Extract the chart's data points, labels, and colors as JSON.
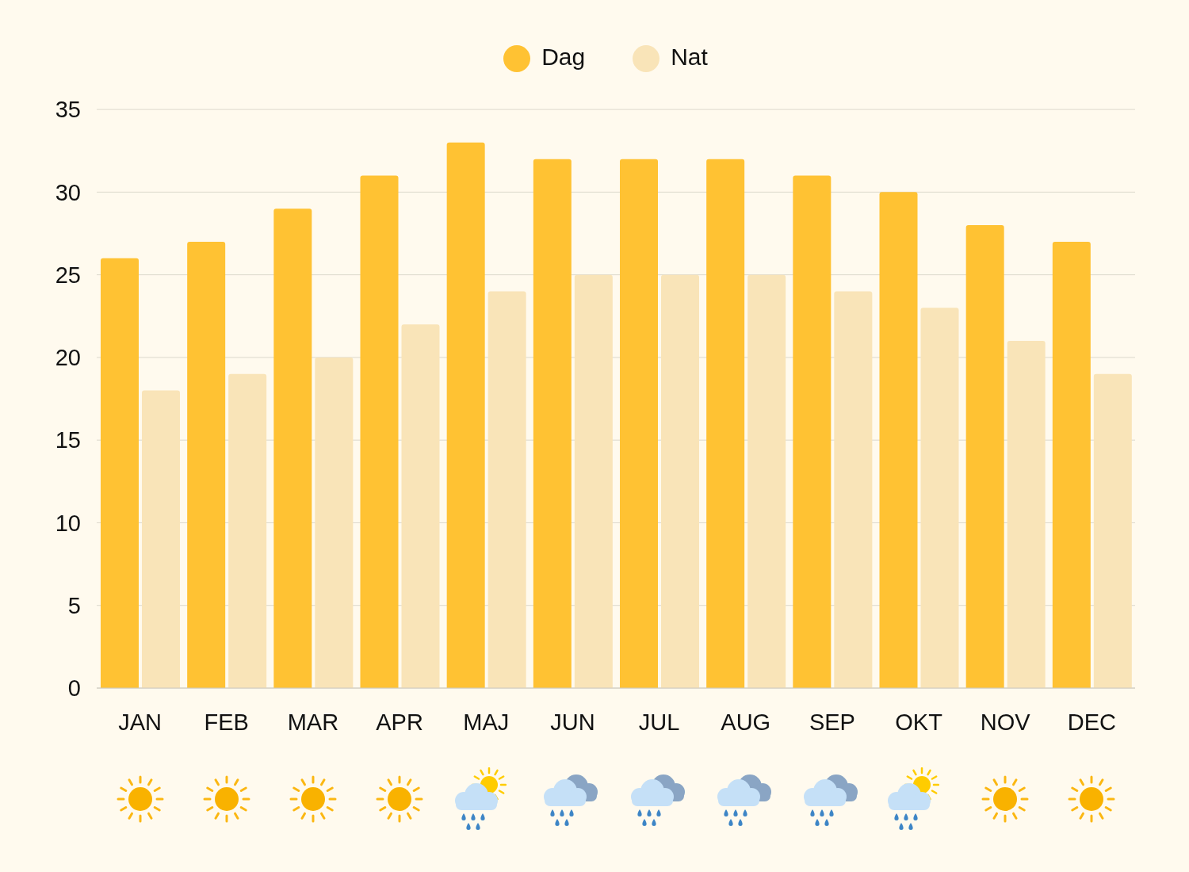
{
  "chart_data": {
    "type": "bar",
    "categories": [
      "JAN",
      "FEB",
      "MAR",
      "APR",
      "MAJ",
      "JUN",
      "JUL",
      "AUG",
      "SEP",
      "OKT",
      "NOV",
      "DEC"
    ],
    "series": [
      {
        "name": "Dag",
        "color": "#ffc233",
        "values": [
          26,
          27,
          29,
          31,
          33,
          32,
          32,
          32,
          31,
          30,
          28,
          27
        ]
      },
      {
        "name": "Nat",
        "color": "#f9e4b8",
        "values": [
          18,
          19,
          20,
          22,
          24,
          25,
          25,
          25,
          24,
          23,
          21,
          19
        ]
      }
    ],
    "ylim": [
      0,
      35
    ],
    "yticks": [
      0,
      5,
      10,
      15,
      20,
      25,
      30,
      35
    ],
    "grid": "y",
    "legend": "top"
  }
}
